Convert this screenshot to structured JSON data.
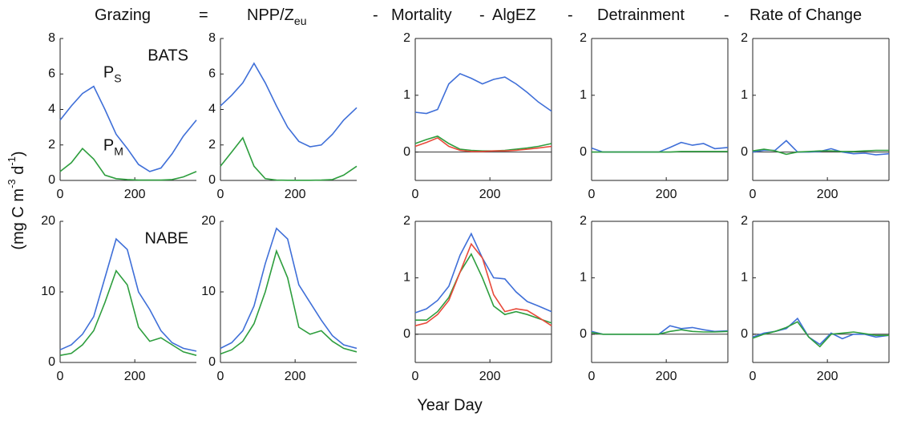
{
  "header": [
    {
      "text": "Grazing"
    },
    {
      "text": "="
    },
    {
      "text": "NPP/Z",
      "sub": "eu"
    },
    {
      "text": "-"
    },
    {
      "text": "Mortality"
    },
    {
      "text": "-"
    },
    {
      "text": "AlgEZ",
      "color": "#e8281e"
    },
    {
      "text": "-"
    },
    {
      "text": "Detrainment"
    },
    {
      "text": "-"
    },
    {
      "text": "Rate of Change"
    }
  ],
  "ylabel": [
    {
      "text": "(mg C m"
    },
    {
      "text": "-3",
      "sup": true
    },
    {
      "text": " d"
    },
    {
      "text": "-1",
      "sup": true
    },
    {
      "text": ")"
    }
  ],
  "xlabel": "Year Day",
  "chart_data": [
    {
      "type": "line",
      "annotation": "BATS",
      "x": [
        0,
        30,
        60,
        90,
        120,
        150,
        180,
        210,
        240,
        270,
        300,
        330,
        365
      ],
      "xlim": [
        0,
        365
      ],
      "xticks": [
        0,
        200
      ],
      "ylim": [
        0,
        8
      ],
      "yticks": [
        0,
        2,
        4,
        6,
        8
      ],
      "series": [
        {
          "name": "P",
          "subscript": "S",
          "color": "#3f6fd8",
          "values": [
            3.4,
            4.2,
            4.9,
            5.3,
            4.0,
            2.6,
            1.8,
            0.9,
            0.5,
            0.7,
            1.5,
            2.5,
            3.4
          ]
        },
        {
          "name": "P",
          "subscript": "M",
          "color": "#2e9e3e",
          "values": [
            0.5,
            1.0,
            1.8,
            1.2,
            0.3,
            0.1,
            0.05,
            0.02,
            0.02,
            0.02,
            0.05,
            0.2,
            0.5
          ]
        }
      ]
    },
    {
      "type": "line",
      "x": [
        0,
        30,
        60,
        90,
        120,
        150,
        180,
        210,
        240,
        270,
        300,
        330,
        365
      ],
      "xlim": [
        0,
        365
      ],
      "xticks": [
        0,
        200
      ],
      "ylim": [
        0,
        8
      ],
      "yticks": [
        0,
        2,
        4,
        6,
        8
      ],
      "series": [
        {
          "color": "#3f6fd8",
          "values": [
            4.2,
            4.8,
            5.5,
            6.6,
            5.5,
            4.2,
            3.0,
            2.2,
            1.9,
            2.0,
            2.6,
            3.4,
            4.1
          ]
        },
        {
          "color": "#2e9e3e",
          "values": [
            0.8,
            1.6,
            2.4,
            0.8,
            0.1,
            0.02,
            0.01,
            0.01,
            0.01,
            0.02,
            0.05,
            0.3,
            0.8
          ]
        }
      ]
    },
    {
      "type": "line",
      "box": true,
      "zero_line": true,
      "x": [
        0,
        30,
        60,
        90,
        120,
        150,
        180,
        210,
        240,
        270,
        300,
        330,
        365
      ],
      "xlim": [
        0,
        365
      ],
      "xticks": [
        0,
        200
      ],
      "ylim": [
        -0.5,
        2
      ],
      "yticks": [
        0,
        1,
        2
      ],
      "series": [
        {
          "color": "#3f6fd8",
          "values": [
            0.7,
            0.68,
            0.75,
            1.2,
            1.38,
            1.3,
            1.2,
            1.28,
            1.32,
            1.2,
            1.05,
            0.88,
            0.72
          ]
        },
        {
          "color": "#2e9e3e",
          "values": [
            0.15,
            0.22,
            0.28,
            0.15,
            0.05,
            0.03,
            0.02,
            0.02,
            0.03,
            0.05,
            0.07,
            0.1,
            0.15
          ]
        },
        {
          "color": "#e84a3a",
          "values": [
            0.1,
            0.17,
            0.25,
            0.1,
            0.03,
            0.01,
            0.01,
            0.02,
            0.02,
            0.03,
            0.05,
            0.07,
            0.1
          ]
        }
      ]
    },
    {
      "type": "line",
      "box": true,
      "zero_line": true,
      "x": [
        0,
        30,
        60,
        90,
        120,
        150,
        180,
        210,
        240,
        270,
        300,
        330,
        365
      ],
      "xlim": [
        0,
        365
      ],
      "xticks": [
        0,
        200
      ],
      "ylim": [
        -0.5,
        2
      ],
      "yticks": [
        0,
        1,
        2
      ],
      "series": [
        {
          "color": "#3f6fd8",
          "values": [
            0.07,
            0,
            0,
            0,
            0,
            0,
            0,
            0.08,
            0.17,
            0.12,
            0.15,
            0.06,
            0.08
          ]
        },
        {
          "color": "#2e9e3e",
          "values": [
            0,
            0,
            0,
            0,
            0,
            0,
            0,
            0,
            0.01,
            0.01,
            0.01,
            0.01,
            0.01
          ]
        }
      ]
    },
    {
      "type": "line",
      "box": true,
      "zero_line": true,
      "x": [
        0,
        30,
        60,
        90,
        120,
        150,
        180,
        210,
        240,
        270,
        300,
        330,
        365
      ],
      "xlim": [
        0,
        365
      ],
      "xticks": [
        0,
        200
      ],
      "ylim": [
        -0.5,
        2
      ],
      "yticks": [
        0,
        1,
        2
      ],
      "series": [
        {
          "color": "#3f6fd8",
          "values": [
            0,
            0.03,
            0.03,
            0.2,
            0,
            0,
            0.01,
            0.06,
            0,
            -0.03,
            -0.02,
            -0.05,
            -0.03
          ]
        },
        {
          "color": "#2e9e3e",
          "values": [
            0.02,
            0.05,
            0.02,
            -0.04,
            0,
            0.01,
            0.02,
            0.02,
            0.01,
            0.01,
            0.02,
            0.03,
            0.03
          ]
        }
      ]
    },
    {
      "type": "line",
      "annotation": "NABE",
      "x": [
        0,
        30,
        60,
        90,
        120,
        150,
        180,
        210,
        240,
        270,
        300,
        330,
        365
      ],
      "xlim": [
        0,
        365
      ],
      "xticks": [
        0,
        200
      ],
      "ylim": [
        0,
        20
      ],
      "yticks": [
        0,
        10,
        20
      ],
      "series": [
        {
          "color": "#3f6fd8",
          "values": [
            1.8,
            2.5,
            4,
            6.5,
            12,
            17.5,
            16,
            10,
            7.5,
            4.5,
            2.8,
            2,
            1.6
          ]
        },
        {
          "color": "#2e9e3e",
          "values": [
            1,
            1.3,
            2.5,
            4.5,
            8.5,
            13,
            11,
            5,
            3,
            3.5,
            2.5,
            1.5,
            1
          ]
        }
      ]
    },
    {
      "type": "line",
      "x": [
        0,
        30,
        60,
        90,
        120,
        150,
        180,
        210,
        240,
        270,
        300,
        330,
        365
      ],
      "xlim": [
        0,
        365
      ],
      "xticks": [
        0,
        200
      ],
      "ylim": [
        0,
        20
      ],
      "yticks": [
        0,
        10,
        20
      ],
      "series": [
        {
          "color": "#3f6fd8",
          "values": [
            2,
            2.8,
            4.5,
            8,
            14,
            19,
            17.5,
            11,
            8.5,
            6,
            3.8,
            2.5,
            2
          ]
        },
        {
          "color": "#2e9e3e",
          "values": [
            1.2,
            1.8,
            3,
            5.5,
            10,
            15.8,
            12,
            5,
            4,
            4.5,
            3,
            2,
            1.5
          ]
        }
      ]
    },
    {
      "type": "line",
      "box": true,
      "zero_line": true,
      "x": [
        0,
        30,
        60,
        90,
        120,
        150,
        180,
        210,
        240,
        270,
        300,
        330,
        365
      ],
      "xlim": [
        0,
        365
      ],
      "xticks": [
        0,
        200
      ],
      "ylim": [
        -0.5,
        2
      ],
      "yticks": [
        0,
        1,
        2
      ],
      "series": [
        {
          "color": "#3f6fd8",
          "values": [
            0.38,
            0.45,
            0.6,
            0.85,
            1.4,
            1.78,
            1.35,
            1.0,
            0.98,
            0.75,
            0.58,
            0.5,
            0.4
          ]
        },
        {
          "color": "#2e9e3e",
          "values": [
            0.25,
            0.25,
            0.4,
            0.65,
            1.1,
            1.42,
            1.0,
            0.5,
            0.35,
            0.4,
            0.35,
            0.28,
            0.2
          ]
        },
        {
          "color": "#e84a3a",
          "values": [
            0.15,
            0.2,
            0.35,
            0.6,
            1.1,
            1.6,
            1.35,
            0.7,
            0.4,
            0.45,
            0.42,
            0.3,
            0.15
          ]
        }
      ]
    },
    {
      "type": "line",
      "box": true,
      "zero_line": true,
      "x": [
        0,
        30,
        60,
        90,
        120,
        150,
        180,
        210,
        240,
        270,
        300,
        330,
        365
      ],
      "xlim": [
        0,
        365
      ],
      "xticks": [
        0,
        200
      ],
      "ylim": [
        -0.5,
        2
      ],
      "yticks": [
        0,
        1,
        2
      ],
      "series": [
        {
          "color": "#3f6fd8",
          "values": [
            0.05,
            0,
            0,
            0,
            0,
            0,
            0,
            0.15,
            0.1,
            0.12,
            0.08,
            0.05,
            0.06
          ]
        },
        {
          "color": "#2e9e3e",
          "values": [
            0.03,
            0,
            0,
            0,
            0,
            0,
            0,
            0.05,
            0.08,
            0.05,
            0.04,
            0.04,
            0.05
          ]
        }
      ]
    },
    {
      "type": "line",
      "box": true,
      "zero_line": true,
      "x": [
        0,
        30,
        60,
        90,
        120,
        150,
        180,
        210,
        240,
        270,
        300,
        330,
        365
      ],
      "xlim": [
        0,
        365
      ],
      "xticks": [
        0,
        200
      ],
      "ylim": [
        -0.5,
        2
      ],
      "yticks": [
        0,
        1,
        2
      ],
      "series": [
        {
          "color": "#3f6fd8",
          "values": [
            -0.05,
            0.02,
            0.05,
            0.1,
            0.28,
            -0.05,
            -0.18,
            0.02,
            -0.08,
            0,
            0,
            -0.05,
            -0.02
          ]
        },
        {
          "color": "#2e9e3e",
          "values": [
            -0.07,
            0,
            0.05,
            0.12,
            0.22,
            -0.05,
            -0.22,
            0,
            0.02,
            0.04,
            0.01,
            -0.02,
            -0.02
          ]
        }
      ]
    }
  ]
}
